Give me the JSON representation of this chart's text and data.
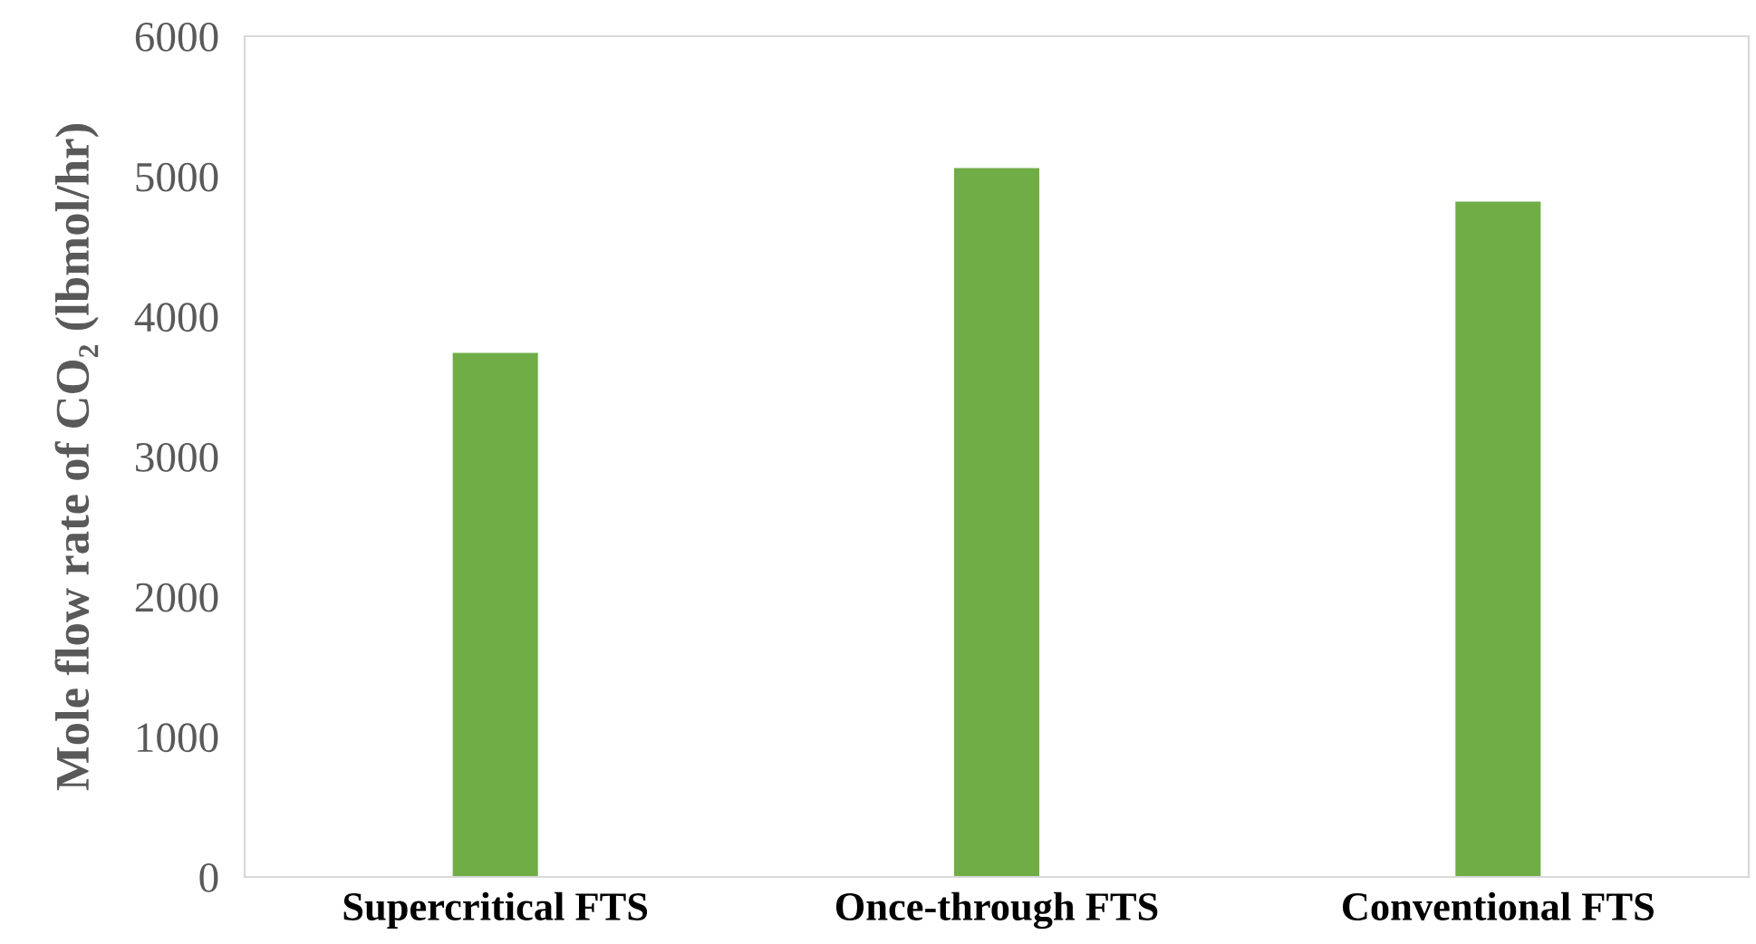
{
  "chart_data": {
    "type": "bar",
    "ylabel": "Mole flow rate of CO₂ (lbmol/hr)",
    "categories": [
      "Supercritical FTS",
      "Once-through FTS",
      "Conventional FTS"
    ],
    "values": [
      3740,
      5060,
      4820
    ],
    "color": "#70ad47",
    "ylim": [
      0,
      6000
    ],
    "yticks": [
      0,
      1000,
      2000,
      3000,
      4000,
      5000,
      6000
    ],
    "grid": false,
    "legend": false
  }
}
